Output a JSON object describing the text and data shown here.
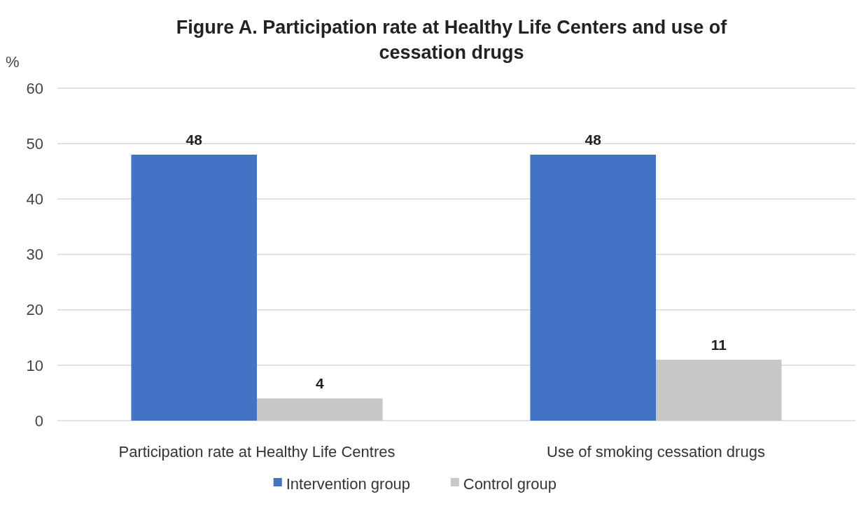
{
  "chart_data": {
    "type": "bar",
    "title": "Figure A. Participation rate at Healthy Life Centers and use of cessation drugs",
    "ylabel": "%",
    "categories": [
      "Participation rate at Healthy Life Centres",
      "Use of smoking cessation drugs"
    ],
    "series": [
      {
        "name": "Intervention group",
        "color": "#4472c4",
        "values": [
          48,
          48
        ]
      },
      {
        "name": "Control group",
        "color": "#c8c8c8",
        "values": [
          4,
          11
        ]
      }
    ],
    "ylim": [
      0,
      60
    ],
    "yticks": [
      0,
      10,
      20,
      30,
      40,
      50,
      60
    ],
    "grid": "y",
    "legend": "bottom",
    "data_labels": true
  }
}
